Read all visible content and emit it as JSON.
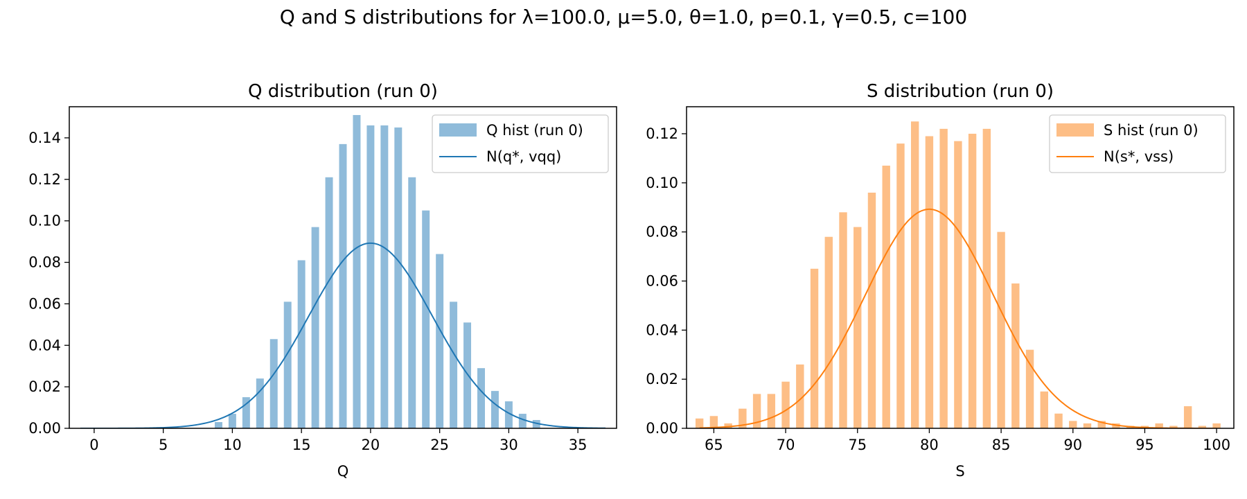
{
  "suptitle": "Q and S distributions for λ=100.0, μ=5.0, θ=1.0, p=0.1, γ=0.5, c=100",
  "chart_data": [
    {
      "type": "bar",
      "id": "q",
      "title": "Q distribution (run 0)",
      "xlabel": "Q",
      "ylabel": "",
      "xlim": [
        -1.8,
        37.8
      ],
      "ylim": [
        0,
        0.155
      ],
      "xticks": [
        0,
        5,
        10,
        15,
        20,
        25,
        30,
        35
      ],
      "yticks": [
        0.0,
        0.02,
        0.04,
        0.06,
        0.08,
        0.1,
        0.12,
        0.14
      ],
      "bar_width": 0.55,
      "bar_color": "#8FBBDA",
      "line_color": "#1f77b4",
      "hist_label": "Q hist (run 0)",
      "curve_label": "N(q*, vqq)",
      "legend": "top-right",
      "curve": {
        "mean": 20,
        "sd": 4.47,
        "from": -1,
        "to": 37
      },
      "x": [
        9,
        10,
        11,
        12,
        13,
        14,
        15,
        16,
        17,
        18,
        19,
        20,
        21,
        22,
        23,
        24,
        25,
        26,
        27,
        28,
        29,
        30,
        31,
        32
      ],
      "values": [
        0.003,
        0.007,
        0.015,
        0.024,
        0.043,
        0.061,
        0.081,
        0.097,
        0.121,
        0.137,
        0.151,
        0.146,
        0.146,
        0.145,
        0.121,
        0.105,
        0.084,
        0.061,
        0.051,
        0.029,
        0.018,
        0.013,
        0.007,
        0.004
      ]
    },
    {
      "type": "bar",
      "id": "s",
      "title": "S distribution (run 0)",
      "xlabel": "S",
      "ylabel": "",
      "xlim": [
        63.1,
        101.2
      ],
      "ylim": [
        0,
        0.131
      ],
      "xticks": [
        65,
        70,
        75,
        80,
        85,
        90,
        95,
        100
      ],
      "yticks": [
        0.0,
        0.02,
        0.04,
        0.06,
        0.08,
        0.1,
        0.12
      ],
      "bar_width": 0.55,
      "bar_color": "#FDBE86",
      "line_color": "#ff7f0e",
      "hist_label": "S hist (run 0)",
      "curve_label": "N(s*, vss)",
      "legend": "top-right",
      "curve": {
        "mean": 80,
        "sd": 4.47,
        "from": 64,
        "to": 100
      },
      "x": [
        64,
        65,
        66,
        67,
        68,
        69,
        70,
        71,
        72,
        73,
        74,
        75,
        76,
        77,
        78,
        79,
        80,
        81,
        82,
        83,
        84,
        85,
        86,
        87,
        88,
        89,
        90,
        91,
        92,
        93,
        94,
        95,
        96,
        97,
        98,
        99,
        100
      ],
      "values": [
        0.004,
        0.005,
        0.002,
        0.008,
        0.014,
        0.014,
        0.019,
        0.026,
        0.065,
        0.078,
        0.088,
        0.082,
        0.096,
        0.107,
        0.116,
        0.125,
        0.119,
        0.122,
        0.117,
        0.12,
        0.122,
        0.08,
        0.059,
        0.032,
        0.015,
        0.006,
        0.003,
        0.002,
        0.003,
        0.002,
        0.001,
        0.001,
        0.002,
        0.001,
        0.009,
        0.001,
        0.002
      ]
    }
  ]
}
